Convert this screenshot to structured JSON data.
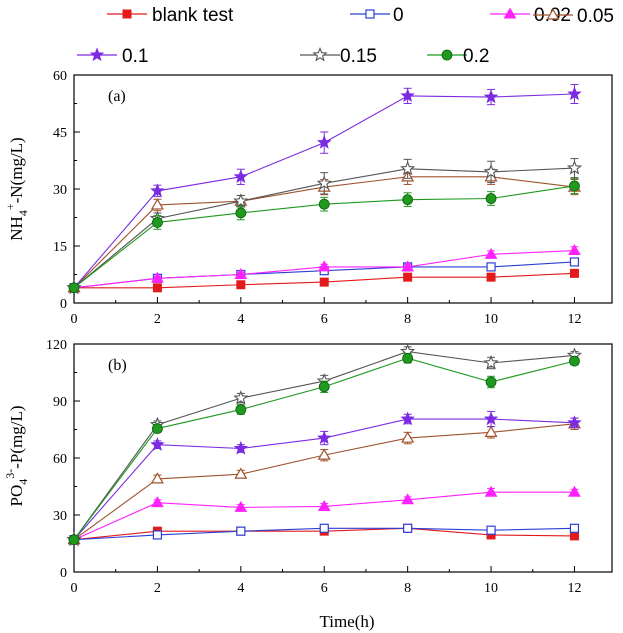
{
  "legend": [
    {
      "label": "blank test",
      "series": 0
    },
    {
      "label": "0",
      "series": 1
    },
    {
      "label": "0.02",
      "series": 2
    },
    {
      "label": "0.05",
      "series": 3
    },
    {
      "label": "0.1",
      "series": 4
    },
    {
      "label": "0.15",
      "series": 5
    },
    {
      "label": "0.2",
      "series": 6
    }
  ],
  "series_styles": [
    {
      "color": "#e31a1c",
      "marker": "square-filled"
    },
    {
      "color": "#2b3fd6",
      "marker": "square-open"
    },
    {
      "color": "#ff22ff",
      "marker": "triangle-filled"
    },
    {
      "color": "#a0522d",
      "marker": "triangle-open"
    },
    {
      "color": "#7b2be2",
      "marker": "star-filled"
    },
    {
      "color": "#555555",
      "marker": "star-open"
    },
    {
      "color": "#1f9a1f",
      "marker": "circle-filled"
    }
  ],
  "chart_data": [
    {
      "type": "line",
      "panel_label": "(a)",
      "ylabel_parts": {
        "base": "NH",
        "sub": "4",
        "sup": "+",
        "rest": "-N(mg/L)"
      },
      "xlabel": "",
      "x": [
        0,
        2,
        4,
        6,
        8,
        10,
        12
      ],
      "x_ticks": [
        "0",
        "2",
        "4",
        "6",
        "8",
        "10",
        "12"
      ],
      "ylim": [
        0,
        60
      ],
      "y_ticks": [
        "0",
        "15",
        "30",
        "45",
        "60"
      ],
      "y_tick_values": [
        0,
        15,
        30,
        45,
        60
      ],
      "grid": false,
      "series": [
        {
          "values": [
            4,
            4,
            4.8,
            5.5,
            6.8,
            6.8,
            7.8
          ],
          "errors": [
            0.3,
            0.3,
            0.4,
            0.4,
            0.5,
            0.5,
            0.5
          ]
        },
        {
          "values": [
            4,
            6.5,
            7.5,
            8.5,
            9.5,
            9.5,
            10.8
          ],
          "errors": [
            0.3,
            0.6,
            0.6,
            0.7,
            0.7,
            0.7,
            0.8
          ]
        },
        {
          "values": [
            4,
            6.5,
            7.5,
            9.5,
            9.5,
            12.8,
            13.8
          ],
          "errors": [
            0.3,
            0.6,
            0.6,
            0.7,
            0.7,
            0.9,
            1.0
          ]
        },
        {
          "values": [
            4,
            25.8,
            26.8,
            30.5,
            33.2,
            33.2,
            30.5
          ],
          "errors": [
            0.3,
            1.5,
            1.5,
            2.0,
            2.0,
            2.0,
            2.0
          ]
        },
        {
          "values": [
            4,
            29.5,
            33.2,
            42.2,
            54.5,
            54.2,
            55
          ],
          "errors": [
            0.3,
            1.5,
            2.0,
            2.8,
            2.0,
            2.0,
            2.5
          ]
        },
        {
          "values": [
            4,
            22.2,
            26.8,
            31.5,
            35.3,
            34.5,
            35.5
          ],
          "errors": [
            0.3,
            1.5,
            1.5,
            2.8,
            2.5,
            2.8,
            2.5
          ]
        },
        {
          "values": [
            4,
            21.2,
            23.7,
            26,
            27.2,
            27.5,
            30.8
          ],
          "errors": [
            0.3,
            1.8,
            1.8,
            1.8,
            1.8,
            1.8,
            2.0
          ]
        }
      ]
    },
    {
      "type": "line",
      "panel_label": "(b)",
      "ylabel_parts": {
        "base": "PO",
        "sub": "4",
        "sup": "3-",
        "rest": "-P(mg/L)"
      },
      "xlabel": "Time(h)",
      "x": [
        0,
        2,
        4,
        6,
        8,
        10,
        12
      ],
      "x_ticks": [
        "0",
        "2",
        "4",
        "6",
        "8",
        "10",
        "12"
      ],
      "ylim": [
        0,
        120
      ],
      "y_ticks": [
        "0",
        "30",
        "60",
        "90",
        "120"
      ],
      "y_tick_values": [
        0,
        30,
        60,
        90,
        120
      ],
      "grid": false,
      "series": [
        {
          "values": [
            17,
            21.5,
            21.5,
            21.5,
            23,
            19.5,
            19
          ],
          "errors": [
            0.8,
            0.8,
            0.8,
            0.8,
            0.8,
            0.8,
            0.8
          ]
        },
        {
          "values": [
            17,
            19.5,
            21.5,
            23,
            23,
            22,
            23
          ],
          "errors": [
            0.8,
            0.8,
            0.8,
            0.8,
            0.8,
            0.8,
            0.8
          ]
        },
        {
          "values": [
            17,
            36.5,
            34,
            34.5,
            38,
            42,
            42
          ],
          "errors": [
            0.8,
            1.5,
            1.5,
            1.5,
            1.5,
            2.0,
            1.5
          ]
        },
        {
          "values": [
            17,
            49,
            51.5,
            61.5,
            70.5,
            73.5,
            78
          ],
          "errors": [
            0.8,
            2.0,
            2.0,
            3.0,
            3.0,
            3.0,
            3.0
          ]
        },
        {
          "values": [
            17,
            67,
            65,
            70.5,
            80.5,
            80.5,
            78.5
          ],
          "errors": [
            0.8,
            2.0,
            2.0,
            3.5,
            2.5,
            4.0,
            2.5
          ]
        },
        {
          "values": [
            17,
            77.5,
            91.5,
            100.5,
            116,
            110,
            114
          ],
          "errors": [
            0.8,
            2.0,
            2.5,
            3.0,
            2.5,
            3.0,
            2.0
          ]
        },
        {
          "values": [
            17,
            75.5,
            85.5,
            97.5,
            112.5,
            100,
            111
          ],
          "errors": [
            0.8,
            2.0,
            2.5,
            3.0,
            2.5,
            3.0,
            2.0
          ]
        }
      ]
    }
  ]
}
